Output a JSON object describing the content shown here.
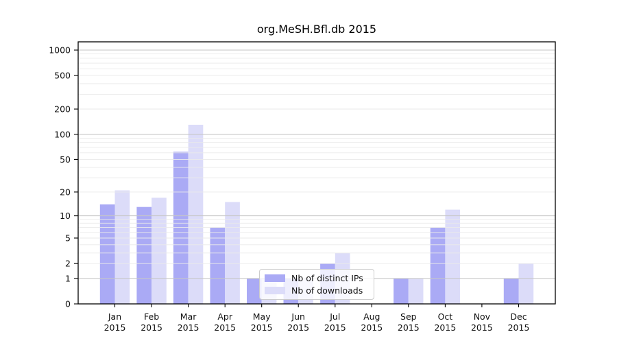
{
  "chart_data": {
    "type": "bar",
    "title": "org.MeSH.Bfl.db 2015",
    "categories": [
      "Jan 2015",
      "Feb 2015",
      "Mar 2015",
      "Apr 2015",
      "May 2015",
      "Jun 2015",
      "Jul 2015",
      "Aug 2015",
      "Sep 2015",
      "Oct 2015",
      "Nov 2015",
      "Dec 2015"
    ],
    "series": [
      {
        "name": "Nb of distinct IPs",
        "color": "#aaaaf5",
        "values": [
          14,
          13,
          62,
          7,
          1,
          1,
          2,
          0,
          1,
          7,
          0,
          1
        ]
      },
      {
        "name": "Nb of downloads",
        "color": "#dcdcf9",
        "values": [
          21,
          17,
          130,
          15,
          1,
          1,
          3,
          0,
          1,
          12,
          0,
          2
        ]
      }
    ],
    "yticks": [
      0,
      1,
      2,
      5,
      10,
      20,
      50,
      100,
      200,
      500,
      1000
    ],
    "ylim": [
      0,
      1200
    ],
    "yscale": "log1p",
    "grid": true,
    "legend_position": "inside-bottom-center",
    "colors": {
      "major_grid": "#c6c6c6",
      "minor_grid": "#eaeaea",
      "axis": "#000000",
      "tick_text": "#111111",
      "background": "#ffffff"
    }
  }
}
